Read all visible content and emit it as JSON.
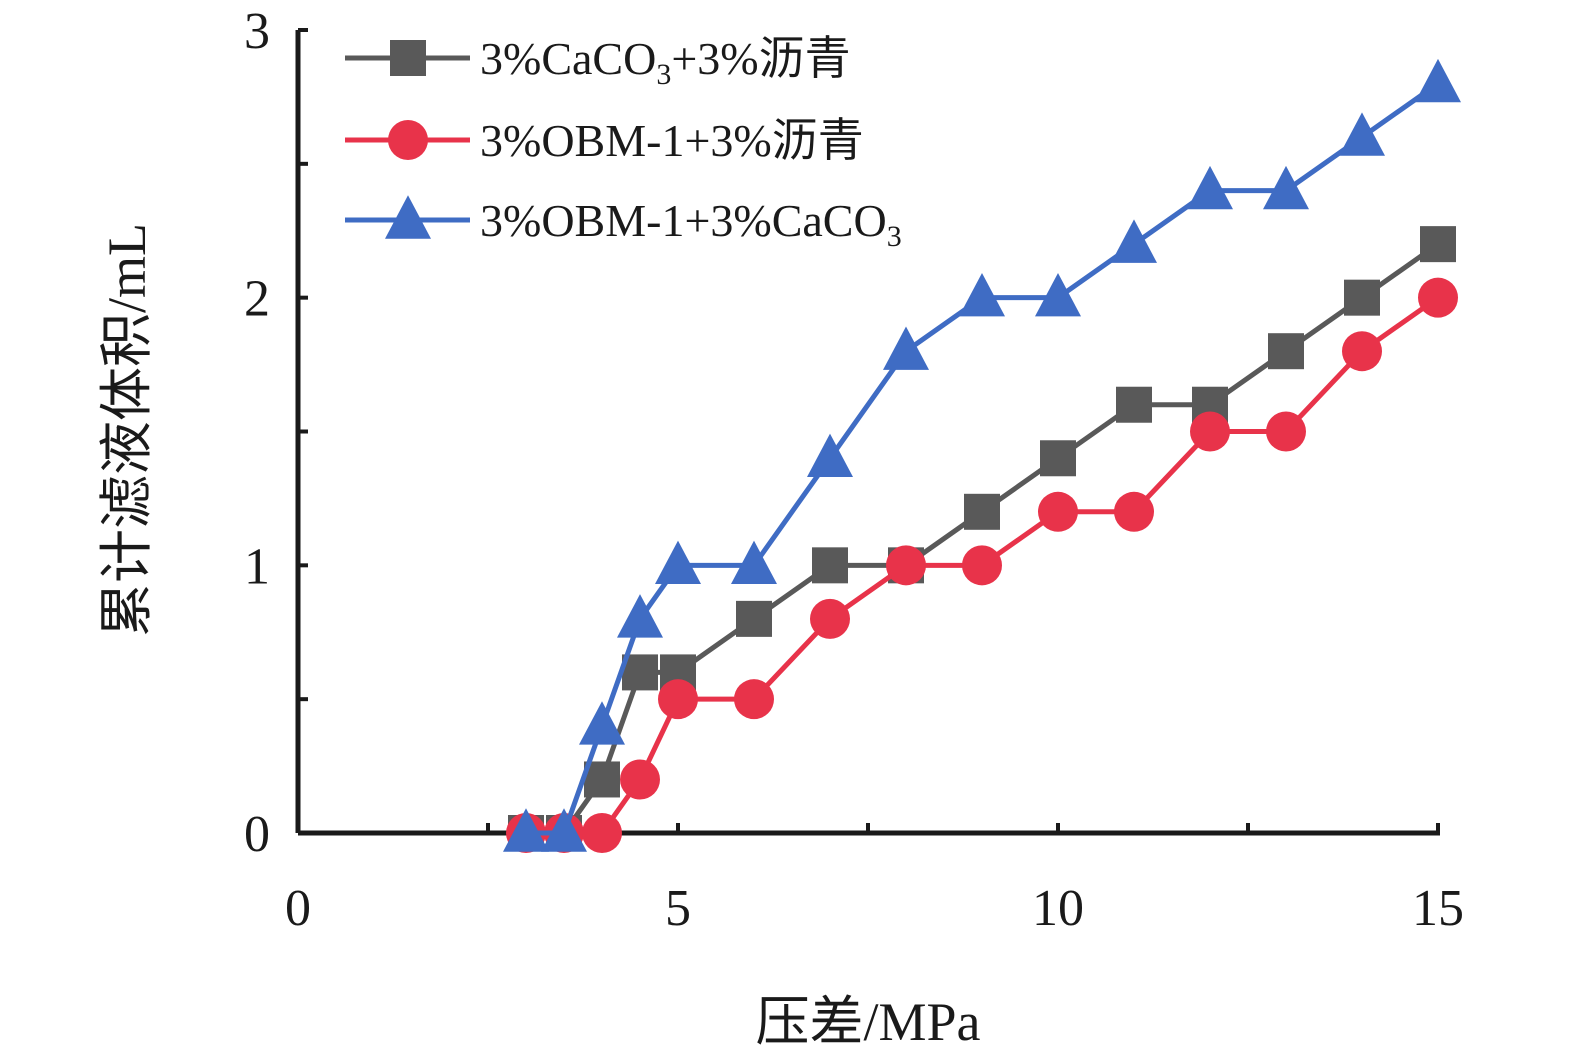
{
  "chart_data": {
    "type": "line",
    "xlabel": "压差/MPa",
    "ylabel": "累计滤液体积/mL",
    "xlim": [
      0,
      15
    ],
    "ylim": [
      0,
      3
    ],
    "x_ticks": [
      "0",
      "5",
      "10",
      "15"
    ],
    "y_ticks": [
      "0",
      "1",
      "2",
      "3"
    ],
    "grid": false,
    "legend_position": "top-left",
    "series": [
      {
        "name_main": "3%CaCO",
        "name_sub": "3",
        "name_tail": "+3%沥青",
        "marker": "square",
        "color": "#595959",
        "x": [
          3,
          3.5,
          4,
          4.5,
          5,
          6,
          7,
          8,
          9,
          10,
          11,
          12,
          13,
          14,
          15
        ],
        "values": [
          0,
          0,
          0.2,
          0.6,
          0.6,
          0.8,
          1.0,
          1.0,
          1.2,
          1.4,
          1.6,
          1.6,
          1.8,
          2.0,
          2.2
        ]
      },
      {
        "name_main": "3%OBM-1+3%沥青",
        "name_sub": "",
        "name_tail": "",
        "marker": "circle",
        "color": "#e8334a",
        "x": [
          3,
          3.5,
          4,
          4.5,
          5,
          6,
          7,
          8,
          9,
          10,
          11,
          12,
          13,
          14,
          15
        ],
        "values": [
          0,
          0,
          0,
          0.2,
          0.5,
          0.5,
          0.8,
          1.0,
          1.0,
          1.2,
          1.2,
          1.5,
          1.5,
          1.8,
          2.0
        ]
      },
      {
        "name_main": "3%OBM-1+3%CaCO",
        "name_sub": "3",
        "name_tail": "",
        "marker": "triangle",
        "color": "#3f6cc4",
        "x": [
          3,
          3.5,
          4,
          4.5,
          5,
          6,
          7,
          8,
          9,
          10,
          11,
          12,
          13,
          14,
          15
        ],
        "values": [
          0,
          0,
          0.4,
          0.8,
          1.0,
          1.0,
          1.4,
          1.8,
          2.0,
          2.0,
          2.2,
          2.4,
          2.4,
          2.6,
          2.8
        ]
      }
    ]
  }
}
